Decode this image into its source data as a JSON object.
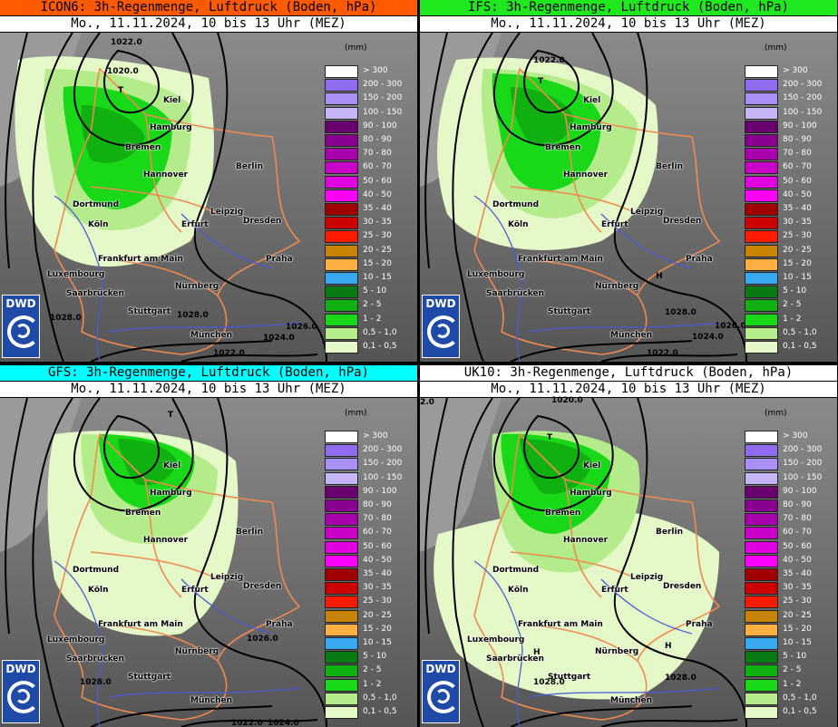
{
  "panels": [
    {
      "model": "ICON6",
      "title": "ICON6: 3h-Regenmenge, Luftdruck (Boden, hPa)",
      "color": "#ff5a00"
    },
    {
      "model": "IFS",
      "title": "IFS: 3h-Regenmenge, Luftdruck (Boden, hPa)",
      "color": "#1fe81f"
    },
    {
      "model": "GFS",
      "title": "GFS: 3h-Regenmenge, Luftdruck (Boden, hPa)",
      "color": "#00ffff"
    },
    {
      "model": "UK10",
      "title": "UK10: 3h-Regenmenge, Luftdruck (Boden, hPa)",
      "color": "#ffffff"
    }
  ],
  "subtitle": "Mo., 11.11.2024, 10 bis 13 Uhr (MEZ)",
  "logo_text": "DWD",
  "legend": {
    "unit": "(mm)",
    "items": [
      {
        "label": "> 300",
        "color": "#ffffff"
      },
      {
        "label": "200 - 300",
        "color": "#8f6cf0"
      },
      {
        "label": "150 - 200",
        "color": "#a890f4"
      },
      {
        "label": "100 - 150",
        "color": "#c6b6f8"
      },
      {
        "label": "90 - 100",
        "color": "#6a0070"
      },
      {
        "label": "80 - 90",
        "color": "#8a008e"
      },
      {
        "label": "70 - 80",
        "color": "#a800ac"
      },
      {
        "label": "60 - 70",
        "color": "#c800c8"
      },
      {
        "label": "50 - 60",
        "color": "#e000e0"
      },
      {
        "label": "40 - 50",
        "color": "#ff00ff"
      },
      {
        "label": "35 - 40",
        "color": "#a00000"
      },
      {
        "label": "30 - 35",
        "color": "#cc0000"
      },
      {
        "label": "25 - 30",
        "color": "#ff1a00"
      },
      {
        "label": "20 - 25",
        "color": "#c88400"
      },
      {
        "label": "15 - 20",
        "color": "#ffb040"
      },
      {
        "label": "10 - 15",
        "color": "#38a8f0"
      },
      {
        "label": "5 - 10",
        "color": "#0a7a14"
      },
      {
        "label": "2 - 5",
        "color": "#10b010"
      },
      {
        "label": "1 - 2",
        "color": "#18d818"
      },
      {
        "label": "0,5 - 1,0",
        "color": "#b4ec8c"
      },
      {
        "label": "0,1 - 0,5",
        "color": "#e4f8c8"
      }
    ]
  },
  "cities": [
    {
      "name": "Kiel"
    },
    {
      "name": "Hamburg"
    },
    {
      "name": "Bremen"
    },
    {
      "name": "Hannover"
    },
    {
      "name": "Berlin"
    },
    {
      "name": "Dortmund"
    },
    {
      "name": "Köln"
    },
    {
      "name": "Erfurt"
    },
    {
      "name": "Leipzig"
    },
    {
      "name": "Dresden"
    },
    {
      "name": "Frankfurt am Main"
    },
    {
      "name": "Praha"
    },
    {
      "name": "Luxembourg"
    },
    {
      "name": "Saarbrücken"
    },
    {
      "name": "Nürnberg"
    },
    {
      "name": "Stuttgart"
    },
    {
      "name": "München"
    }
  ],
  "pressure_labels": {
    "icon6": [
      "1022.0",
      "1020.0",
      "1028.0",
      "1028.0",
      "1026.0",
      "1024.0",
      "1022.0",
      "T"
    ],
    "ifs": [
      "1022.0",
      "T",
      "1028.0",
      "1026.0",
      "1024.0",
      "1022.0",
      "H"
    ],
    "gfs": [
      "1026.0",
      "1028.0",
      "1022.0",
      "1024.0",
      "T"
    ],
    "uk10": [
      "1020.0",
      "T",
      "1028.0",
      "1028.0",
      "H",
      "H",
      "2.0"
    ]
  }
}
